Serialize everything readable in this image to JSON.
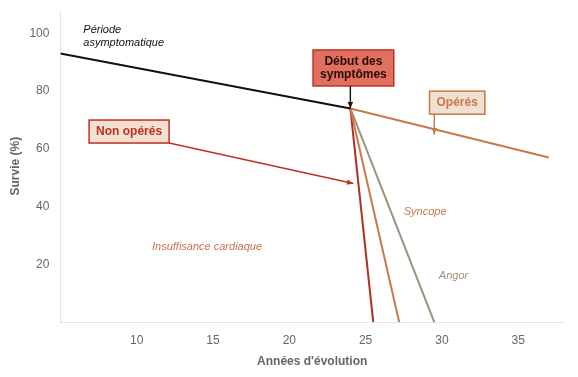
{
  "chart_data": {
    "type": "line",
    "xlabel": "Années d'évolution",
    "ylabel": "Survie (%)",
    "xlim": [
      5,
      38
    ],
    "ylim": [
      0,
      108
    ],
    "xticks": [
      10,
      15,
      20,
      25,
      30,
      35
    ],
    "yticks": [
      20,
      40,
      60,
      80,
      100
    ],
    "grid": false,
    "series": [
      {
        "x": [
          5,
          24
        ],
        "values": [
          93,
          74
        ],
        "color": "#111111"
      },
      {
        "x": [
          24,
          37
        ],
        "values": [
          74,
          57
        ],
        "color": "#c8784a"
      },
      {
        "x": [
          24,
          27.2
        ],
        "values": [
          74,
          0
        ],
        "color": "#c8784a"
      },
      {
        "x": [
          24,
          29.5
        ],
        "values": [
          74,
          0
        ],
        "color": "#a09080"
      },
      {
        "x": [
          24,
          25.5
        ],
        "values": [
          74,
          0
        ],
        "color": "#b03020"
      }
    ],
    "annotations": [
      {
        "text": "Période\nasymptomatique",
        "x": 6.5,
        "y": 99,
        "color": "#111111"
      },
      {
        "text": "Insuffisance cardiaque",
        "x": 11,
        "y": 26,
        "color": "#c87050"
      },
      {
        "text": "Syncope",
        "x": 27.5,
        "y": 38,
        "color": "#c8784a"
      },
      {
        "text": "Angor",
        "x": 29.8,
        "y": 16,
        "color": "#a09080"
      },
      {
        "text": "Début des\nsymptômes",
        "x": 24.2,
        "y": 88,
        "color": "#2a0a00",
        "box": {
          "fill": "#e07060",
          "edge": "#c03020"
        },
        "arrow_to": [
          24,
          74
        ],
        "arrow_color": "#111111"
      },
      {
        "text": "Opérés",
        "x": 31.0,
        "y": 76,
        "color": "#c8784a",
        "box": {
          "fill": "#f2e0d0",
          "edge": "#c8784a"
        },
        "arrow_to": [
          29.5,
          65
        ],
        "arrow_color": "#c8784a"
      },
      {
        "text": "Non opérés",
        "x": 9.5,
        "y": 66,
        "color": "#c03020",
        "box": {
          "fill": "#f2e0d0",
          "edge": "#c03020"
        },
        "arrow_to": [
          24.2,
          48
        ],
        "arrow_color": "#c03020"
      }
    ]
  }
}
